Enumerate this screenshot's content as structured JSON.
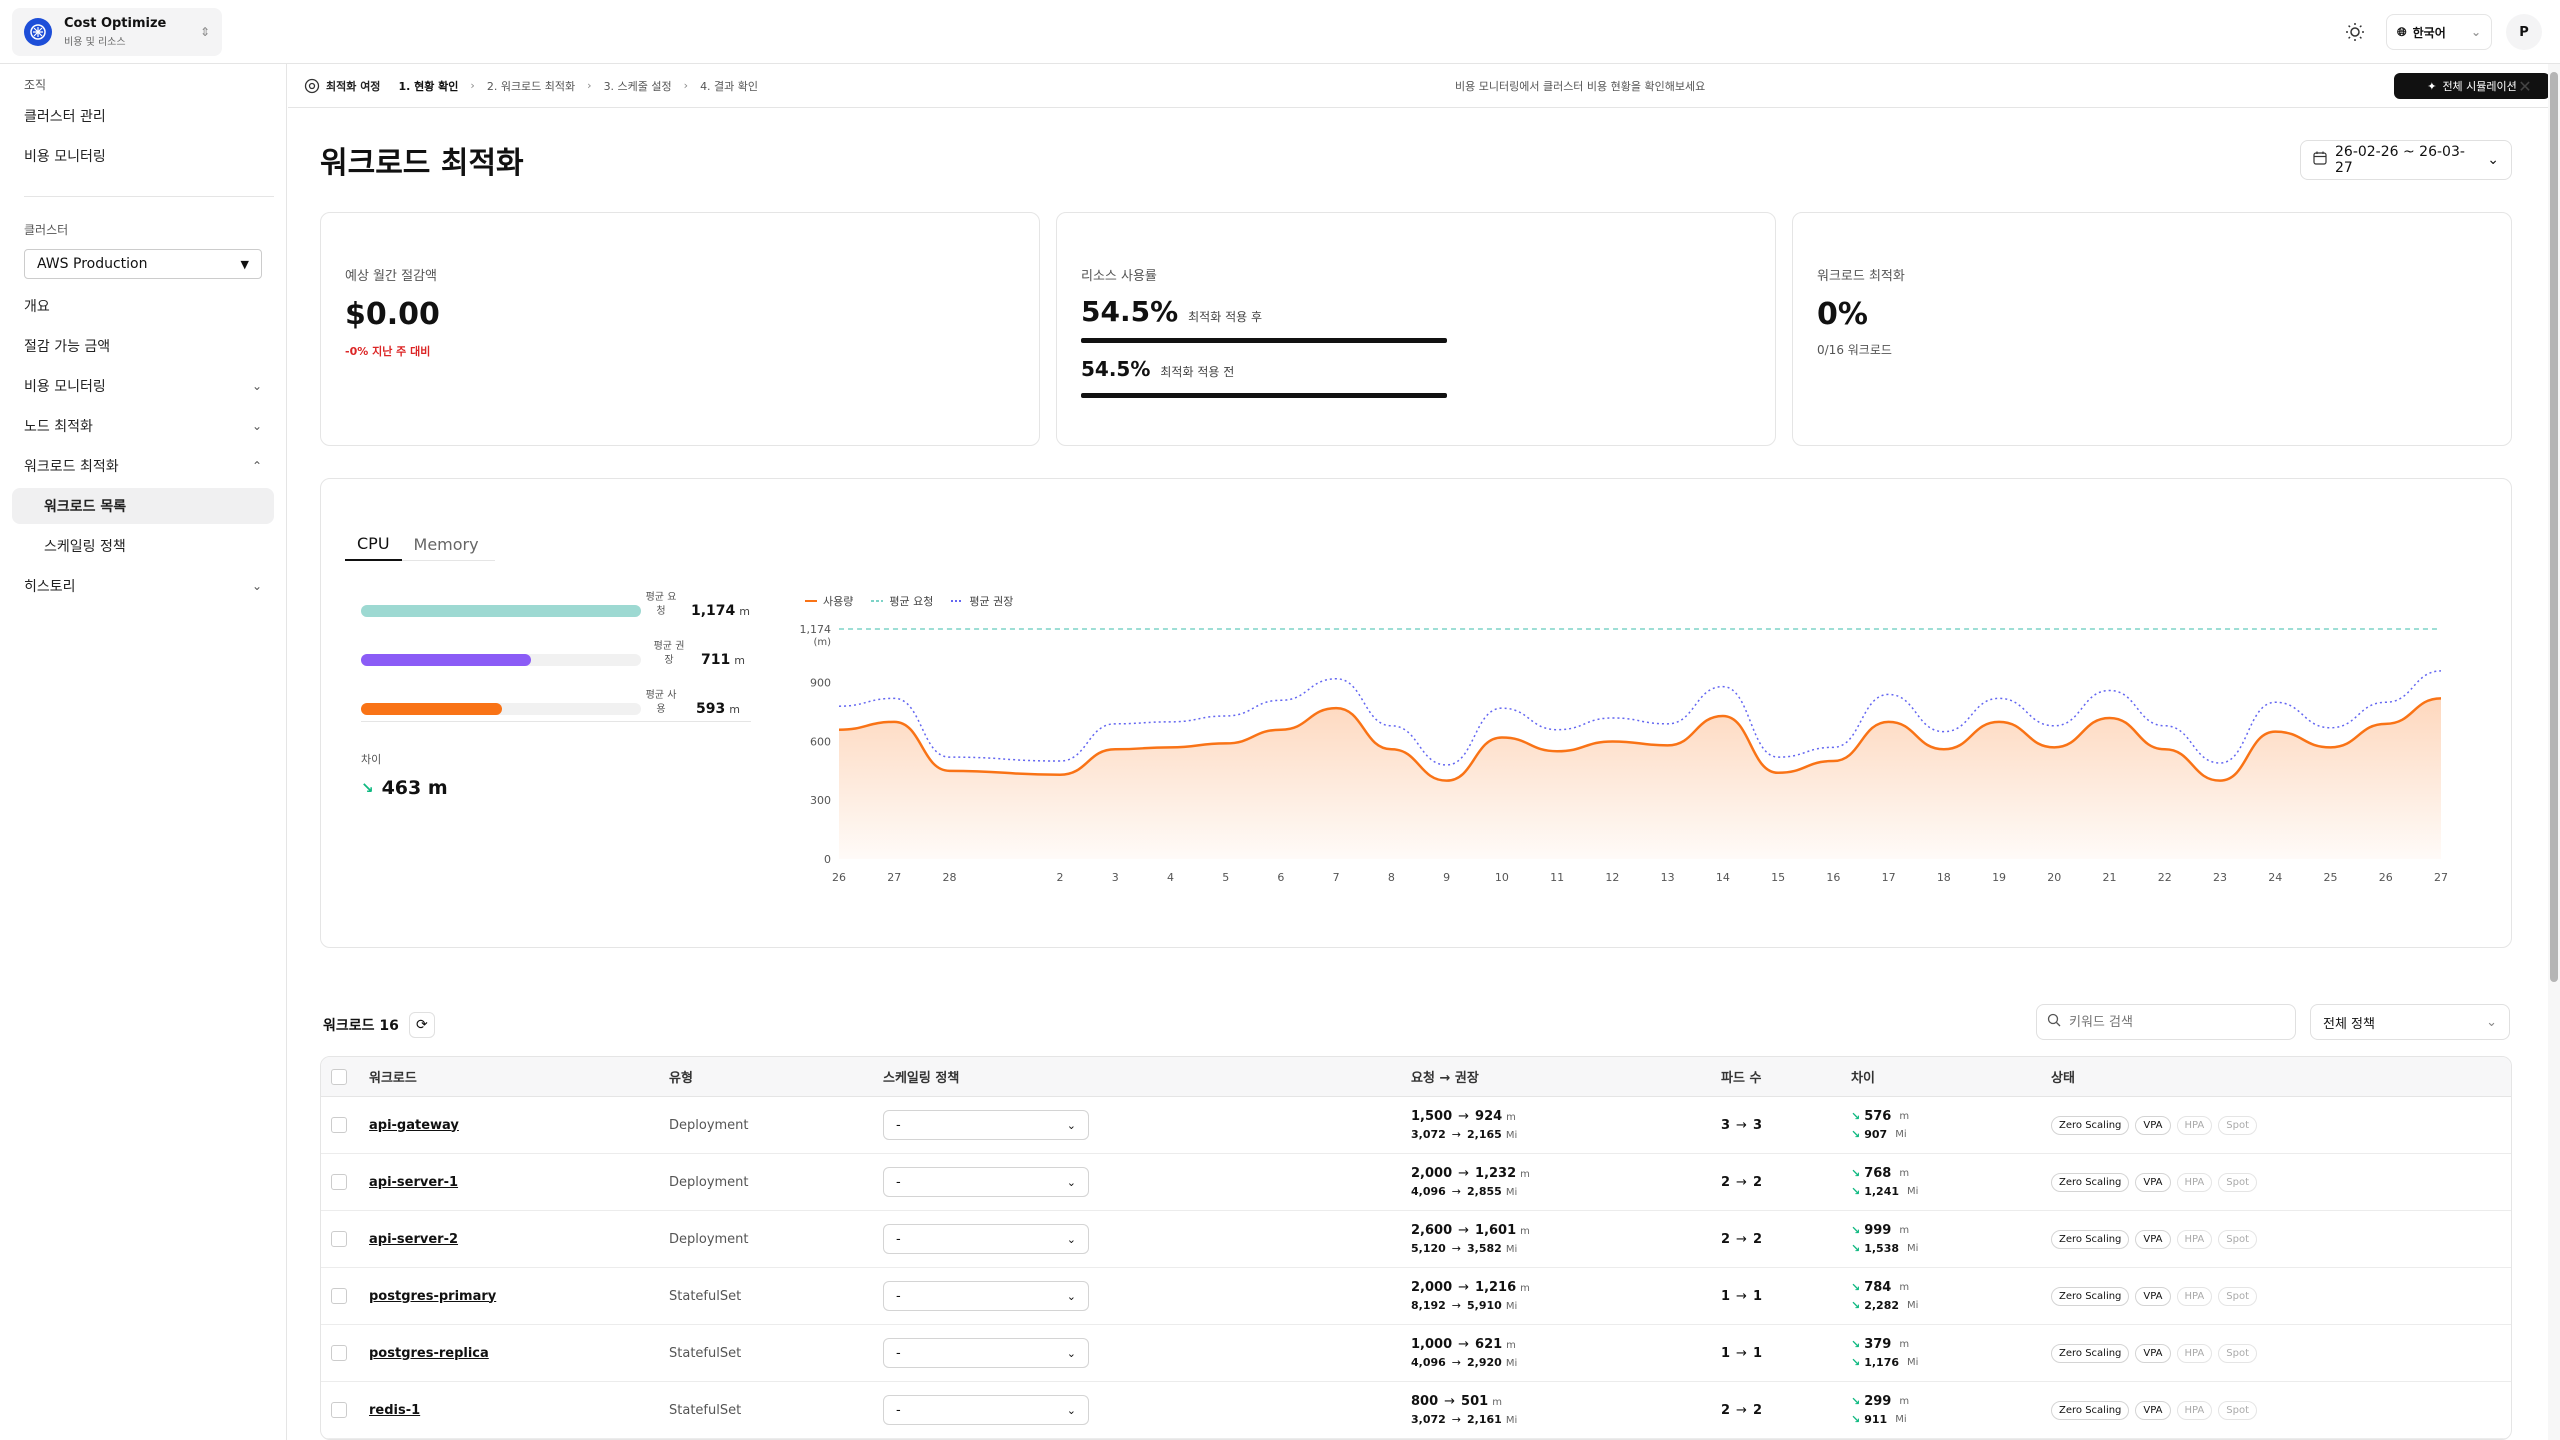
{
  "app": {
    "name": "Cost Optimize",
    "subtitle": "비용 및 리소스"
  },
  "topbar": {
    "language": "한국어",
    "user_initial": "P"
  },
  "sidebar": {
    "org_label": "조직",
    "org_items": [
      "클러스터 관리",
      "비용 모니터링"
    ],
    "cluster_label": "클러스터",
    "cluster_value": "AWS Production",
    "items": [
      "개요",
      "절감 가능 금액",
      "비용 모니터링",
      "노드 최적화",
      "워크로드 최적화",
      "워크로드 목록",
      "스케일링 정책",
      "히스토리"
    ]
  },
  "journey": {
    "title": "최적화 여정",
    "steps": [
      "1. 현황 확인",
      "2. 워크로드 최적화",
      "3. 스케줄 설정",
      "4. 결과 확인"
    ],
    "message": "비용 모니터링에서 클러스터 비용 현황을 확인해보세요",
    "simulate_button": "전체 시뮬레이션"
  },
  "page": {
    "title": "워크로드 최적화",
    "date_range": "26-02-26 ~ 26-03-27"
  },
  "cards": {
    "savings": {
      "label": "예상 월간 절감액",
      "value": "$0.00",
      "sub": "-0% 지난 주 대비"
    },
    "usage": {
      "label": "리소스 사용률",
      "after_value": "54.5%",
      "after_label": "최적화 적용 후",
      "before_value": "54.5%",
      "before_label": "최적화 적용 전",
      "after_fraction": 0.545,
      "before_fraction": 0.545
    },
    "workload": {
      "label": "워크로드 최적화",
      "value": "0%",
      "sub": "0/16 워크로드"
    }
  },
  "resource_tabs": [
    "CPU",
    "Memory"
  ],
  "resource_bars": [
    {
      "label": "평균 요청",
      "value": "1,174",
      "unit": "m",
      "amount": 1174,
      "color": "#9dd9d2"
    },
    {
      "label": "평균 권장",
      "value": "711",
      "unit": "m",
      "amount": 711,
      "color": "#8b5cf6"
    },
    {
      "label": "평균 사용",
      "value": "593",
      "unit": "m",
      "amount": 593,
      "color": "#f97316"
    }
  ],
  "difference": {
    "label": "차이",
    "value": "463 m"
  },
  "chart_data": {
    "type": "line",
    "x": [
      "26",
      "27",
      "28",
      "2",
      "3",
      "4",
      "5",
      "6",
      "7",
      "8",
      "9",
      "10",
      "11",
      "12",
      "13",
      "14",
      "15",
      "16",
      "17",
      "18",
      "19",
      "20",
      "21",
      "22",
      "23",
      "24",
      "25",
      "26",
      "27"
    ],
    "ylim": [
      0,
      1174
    ],
    "yticks": [
      "0",
      "300",
      "600",
      "900",
      "1,174"
    ],
    "ylabel": "(m)",
    "series": [
      {
        "name": "사용량",
        "color": "#f97316",
        "style": "solid-area",
        "values": [
          660,
          700,
          450,
          430,
          560,
          570,
          590,
          660,
          770,
          560,
          400,
          620,
          550,
          600,
          580,
          730,
          440,
          500,
          700,
          560,
          700,
          570,
          720,
          560,
          400,
          650,
          570,
          690,
          820
        ]
      },
      {
        "name": "평균 요청",
        "color": "#7dd3c7",
        "style": "dashed",
        "values": [
          1174,
          1174,
          1174,
          1174,
          1174,
          1174,
          1174,
          1174,
          1174,
          1174,
          1174,
          1174,
          1174,
          1174,
          1174,
          1174,
          1174,
          1174,
          1174,
          1174,
          1174,
          1174,
          1174,
          1174,
          1174,
          1174,
          1174,
          1174,
          1174
        ]
      },
      {
        "name": "평균 권장",
        "color": "#6366f1",
        "style": "dotted",
        "values": [
          780,
          820,
          520,
          500,
          690,
          700,
          730,
          810,
          920,
          680,
          480,
          770,
          660,
          720,
          690,
          880,
          520,
          570,
          840,
          650,
          820,
          680,
          860,
          680,
          490,
          800,
          670,
          800,
          960
        ]
      }
    ]
  },
  "table_header": {
    "count_label": "워크로드 16",
    "search_placeholder": "키워드 검색",
    "policy_filter": "전체 정책",
    "columns": [
      "워크로드",
      "유형",
      "스케일링 정책",
      "요청 → 권장",
      "파드 수",
      "차이",
      "상태"
    ]
  },
  "workloads": [
    {
      "name": "api-gateway",
      "type": "Deployment",
      "policy": "-",
      "cpu_req": "1,500",
      "cpu_rec": "924",
      "mem_req": "3,072",
      "mem_rec": "2,165",
      "pods_from": "3",
      "pods_to": "3",
      "diff_cpu": "576",
      "diff_mem": "907"
    },
    {
      "name": "api-server-1",
      "type": "Deployment",
      "policy": "-",
      "cpu_req": "2,000",
      "cpu_rec": "1,232",
      "mem_req": "4,096",
      "mem_rec": "2,855",
      "pods_from": "2",
      "pods_to": "2",
      "diff_cpu": "768",
      "diff_mem": "1,241"
    },
    {
      "name": "api-server-2",
      "type": "Deployment",
      "policy": "-",
      "cpu_req": "2,600",
      "cpu_rec": "1,601",
      "mem_req": "5,120",
      "mem_rec": "3,582",
      "pods_from": "2",
      "pods_to": "2",
      "diff_cpu": "999",
      "diff_mem": "1,538"
    },
    {
      "name": "postgres-primary",
      "type": "StatefulSet",
      "policy": "-",
      "cpu_req": "2,000",
      "cpu_rec": "1,216",
      "mem_req": "8,192",
      "mem_rec": "5,910",
      "pods_from": "1",
      "pods_to": "1",
      "diff_cpu": "784",
      "diff_mem": "2,282"
    },
    {
      "name": "postgres-replica",
      "type": "StatefulSet",
      "policy": "-",
      "cpu_req": "1,000",
      "cpu_rec": "621",
      "mem_req": "4,096",
      "mem_rec": "2,920",
      "pods_from": "1",
      "pods_to": "1",
      "diff_cpu": "379",
      "diff_mem": "1,176"
    },
    {
      "name": "redis-1",
      "type": "StatefulSet",
      "policy": "-",
      "cpu_req": "800",
      "cpu_rec": "501",
      "mem_req": "3,072",
      "mem_rec": "2,161",
      "pods_from": "2",
      "pods_to": "2",
      "diff_cpu": "299",
      "diff_mem": "911"
    }
  ],
  "units": {
    "cpu": "m",
    "mem": "Mi",
    "arrow": "→"
  },
  "status_badges": [
    "Zero Scaling",
    "VPA",
    "HPA",
    "Spot"
  ]
}
